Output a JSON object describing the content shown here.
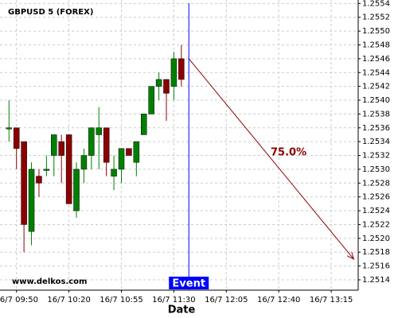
{
  "chart_data": {
    "type": "candlestick",
    "title": "GBPUSD 5 (FOREX)",
    "x_label": "Date",
    "watermark": "www.delkos.com",
    "x": [
      585,
      590,
      595,
      600,
      605,
      610,
      615,
      620,
      625,
      630,
      635,
      640,
      645,
      650,
      655,
      660,
      665,
      670,
      675,
      680,
      685,
      690,
      695,
      700
    ],
    "open": [
      1.2536,
      1.2536,
      1.2534,
      1.2521,
      1.2529,
      1.253,
      1.2532,
      1.2534,
      1.2535,
      1.2524,
      1.253,
      1.2532,
      1.2535,
      1.2536,
      1.2529,
      1.253,
      1.2533,
      1.2531,
      1.2535,
      1.2538,
      1.2542,
      1.2543,
      1.2542,
      1.2546
    ],
    "high": [
      1.254,
      1.2536,
      1.2534,
      1.2531,
      1.253,
      1.2532,
      1.2535,
      1.2535,
      1.2535,
      1.2531,
      1.2533,
      1.2536,
      1.2539,
      1.2536,
      1.2532,
      1.2533,
      1.2533,
      1.2534,
      1.2538,
      1.2542,
      1.2544,
      1.2543,
      1.2547,
      1.2548
    ],
    "low": [
      1.2534,
      1.253,
      1.2518,
      1.2519,
      1.2526,
      1.2529,
      1.2529,
      1.2528,
      1.2525,
      1.2523,
      1.2528,
      1.253,
      1.253,
      1.2529,
      1.2527,
      1.2528,
      1.2532,
      1.2529,
      1.2535,
      1.2538,
      1.254,
      1.2537,
      1.254,
      1.2542
    ],
    "close": [
      1.2536,
      1.2533,
      1.2522,
      1.253,
      1.2528,
      1.253,
      1.2535,
      1.2532,
      1.2525,
      1.253,
      1.2532,
      1.2536,
      1.2536,
      1.2531,
      1.253,
      1.2533,
      1.2532,
      1.2534,
      1.2538,
      1.2542,
      1.2543,
      1.2541,
      1.2546,
      1.2543
    ],
    "up_color": "#008000",
    "down_color": "#8b0000",
    "xlim": [
      579,
      818
    ],
    "xticks": [
      {
        "value": 590,
        "label": "16/7 09:50"
      },
      {
        "value": 625,
        "label": "16/7 10:20"
      },
      {
        "value": 660,
        "label": "16/7 10:55"
      },
      {
        "value": 695,
        "label": "16/7 11:30"
      },
      {
        "value": 730,
        "label": "16/7 12:05"
      },
      {
        "value": 765,
        "label": "16/7 12:40"
      },
      {
        "value": 800,
        "label": "16/7 13:15"
      }
    ],
    "ylim": [
      1.25125,
      1.25545
    ],
    "yticks": [
      1.2514,
      1.2516,
      1.2518,
      {
        "value": 1.252,
        "label": "1.2520"
      },
      1.2522,
      1.2524,
      1.2526,
      1.2528,
      {
        "value": 1.253,
        "label": "1.2530"
      },
      1.2532,
      1.2534,
      1.2536,
      1.2538,
      {
        "value": 1.254,
        "label": "1.2540"
      },
      1.2542,
      1.2544,
      1.2546,
      1.2548,
      {
        "value": 1.255,
        "label": "1.2550"
      },
      1.2552,
      1.2554
    ],
    "grid": true,
    "event": {
      "label": "Event",
      "x": 705,
      "color": "#0000ff"
    },
    "projection": {
      "label": "75.0%",
      "x": [
        705,
        815
      ],
      "y": [
        1.2546,
        1.2517
      ],
      "color": "#8b0000"
    }
  }
}
